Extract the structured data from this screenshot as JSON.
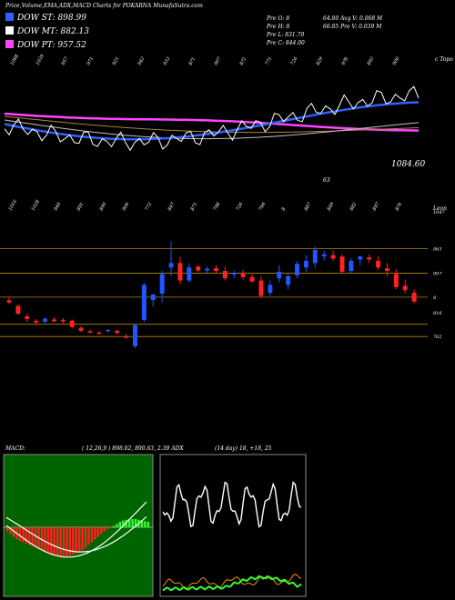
{
  "header": "Price,Volume,EMA,ADX,MACD Charts for POKARNA MunafaSutra.com",
  "legend": [
    {
      "label": "DOW ST: 898.99",
      "color": "#3060ff"
    },
    {
      "label": "DOW MT: 882.13",
      "color": "#ffffff"
    },
    {
      "label": "DOW PT: 957.52",
      "color": "#ff44ff"
    }
  ],
  "info": {
    "left": [
      "Pre  O: 8",
      "Pre  H: 8",
      "Pre  L: 831.70",
      "Pre  C: 844.00"
    ],
    "right": [
      "64.80   Avg V: 0.068 M",
      "66.85   Pre  V: 0.039 M"
    ]
  },
  "top_panel": {
    "ticks": [
      "1068",
      "1039",
      "957",
      "971",
      "921",
      "942",
      "933",
      "8?1",
      "907",
      "8?2",
      "771",
      "726",
      "829",
      "9?8",
      "893",
      "900"
    ],
    "right_label": "c Topo",
    "value_label": "1084.60",
    "small_label": "63"
  },
  "price_panel": {
    "ticks": [
      "1016",
      "1028",
      "940",
      "891",
      "890",
      "906",
      "772",
      "847",
      "871",
      "798",
      "726",
      "794",
      "8",
      "887",
      "849",
      "882",
      "897",
      "8?4"
    ],
    "y_labels": [
      {
        "label": "1047",
        "v": 1047
      },
      {
        "label": "963",
        "v": 963
      },
      {
        "label": "907",
        "v": 907
      },
      {
        "label": "8",
        "v": 852
      },
      {
        "label": "816",
        "v": 816
      },
      {
        "label": "762",
        "v": 762
      }
    ],
    "top_right_text": "Leon",
    "hlines": [
      963,
      907,
      852,
      790,
      762
    ]
  },
  "macd_panel": {
    "label": "MACD:",
    "values": "( 12,26,9 ) 898.02,  890.63, 2.39 ADX"
  },
  "adx_panel": {
    "values": "(14  day) 18, +18, 25"
  },
  "chart_data": {
    "type": "candlestick",
    "ylim": [
      700,
      1070
    ],
    "candles": [
      [
        845,
        852,
        836,
        840
      ],
      [
        832,
        836,
        812,
        814
      ],
      [
        808,
        814,
        795,
        802
      ],
      [
        798,
        802,
        788,
        794
      ],
      [
        796,
        805,
        792,
        803
      ],
      [
        801,
        806,
        795,
        797
      ],
      [
        800,
        804,
        792,
        799
      ],
      [
        798,
        801,
        780,
        784
      ],
      [
        782,
        786,
        772,
        775
      ],
      [
        774,
        778,
        770,
        772
      ],
      [
        771,
        775,
        768,
        769
      ],
      [
        776,
        779,
        772,
        777
      ],
      [
        775,
        778,
        768,
        770
      ],
      [
        762,
        768,
        758,
        760
      ],
      [
        740,
        790,
        735,
        788
      ],
      [
        800,
        885,
        795,
        880
      ],
      [
        845,
        860,
        830,
        858
      ],
      [
        860,
        912,
        840,
        905
      ],
      [
        920,
        980,
        900,
        930
      ],
      [
        930,
        945,
        880,
        890
      ],
      [
        890,
        930,
        885,
        920
      ],
      [
        922,
        925,
        910,
        913
      ],
      [
        913,
        922,
        905,
        917
      ],
      [
        918,
        925,
        908,
        912
      ],
      [
        912,
        922,
        890,
        895
      ],
      [
        905,
        912,
        895,
        907
      ],
      [
        908,
        915,
        892,
        898
      ],
      [
        898,
        905,
        885,
        888
      ],
      [
        890,
        900,
        850,
        855
      ],
      [
        862,
        890,
        855,
        880
      ],
      [
        895,
        925,
        885,
        910
      ],
      [
        880,
        905,
        870,
        900
      ],
      [
        902,
        935,
        895,
        928
      ],
      [
        920,
        948,
        910,
        935
      ],
      [
        930,
        968,
        920,
        960
      ],
      [
        945,
        958,
        935,
        950
      ],
      [
        948,
        958,
        935,
        940
      ],
      [
        945,
        950,
        905,
        910
      ],
      [
        912,
        942,
        905,
        935
      ],
      [
        938,
        948,
        925,
        945
      ],
      [
        943,
        950,
        930,
        938
      ],
      [
        935,
        945,
        915,
        920
      ],
      [
        918,
        930,
        900,
        912
      ],
      [
        905,
        915,
        870,
        875
      ],
      [
        878,
        892,
        860,
        868
      ],
      [
        862,
        870,
        838,
        842
      ]
    ],
    "macd_hist": [
      -6,
      -10,
      -14,
      -18,
      -20,
      -22,
      -24,
      -26,
      -28,
      -30,
      -32,
      -34,
      -36,
      -38,
      -40,
      -42,
      -43,
      -44,
      -44,
      -43,
      -42,
      -40,
      -38,
      -36,
      -34,
      -30,
      -26,
      -22,
      -18,
      -14,
      -10,
      -6,
      -3,
      -1,
      2,
      5,
      8,
      10,
      11,
      12,
      12,
      12,
      11,
      10,
      9,
      8
    ]
  }
}
